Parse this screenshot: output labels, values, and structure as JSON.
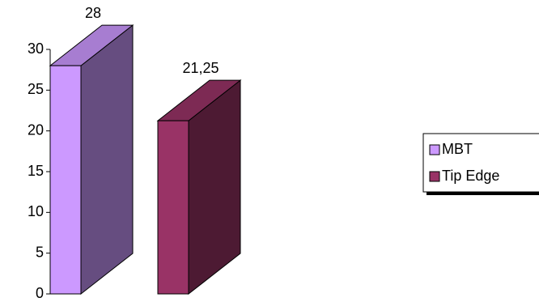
{
  "chart_data": {
    "type": "bar3d",
    "categories": [
      null
    ],
    "series": [
      {
        "name": "MBT",
        "color": "#cc99ff",
        "values": [
          28
        ],
        "value_labels": [
          "28"
        ]
      },
      {
        "name": "Tip Edge",
        "color": "#993366",
        "values": [
          21.25
        ],
        "value_labels": [
          "21,25"
        ]
      }
    ],
    "ylim": [
      0,
      30
    ],
    "yticks": [
      0,
      5,
      10,
      15,
      20,
      25,
      30
    ],
    "legend": "right"
  }
}
